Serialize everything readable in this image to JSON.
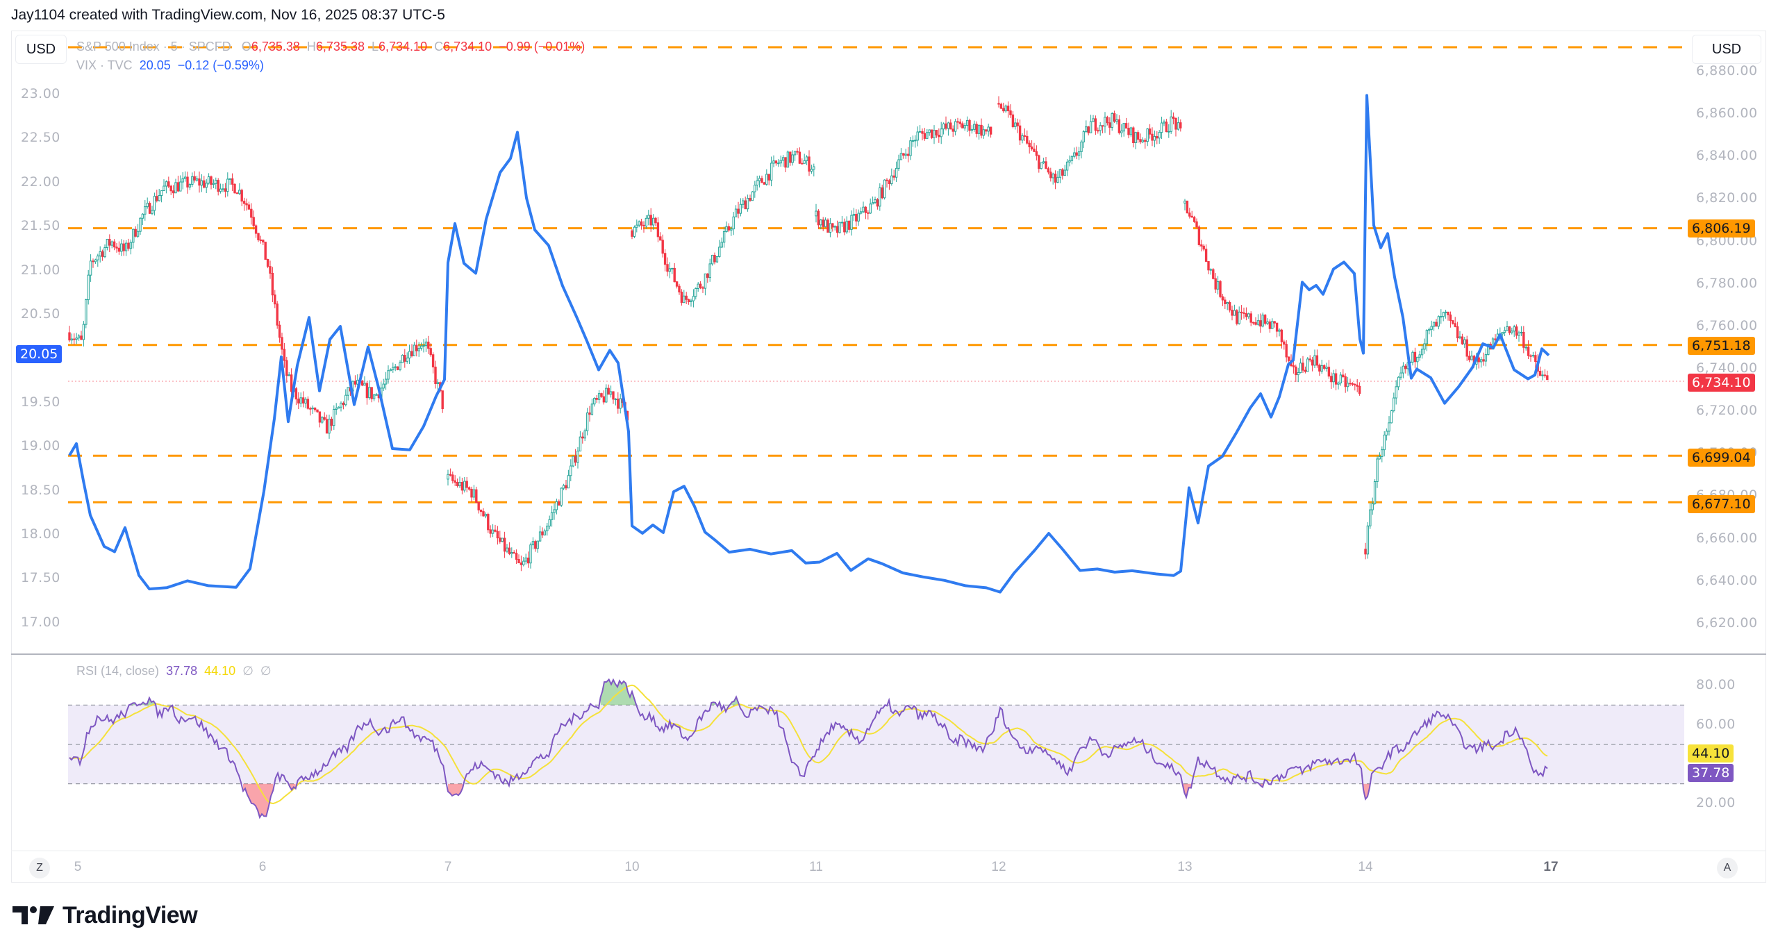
{
  "caption": "Jay1104 created with TradingView.com, Nov 16, 2025 08:37 UTC-5",
  "currency_left": "USD",
  "currency_right": "USD",
  "legend": {
    "main": {
      "symbol": "S&P 500 Index · 5 · SPCFD",
      "o_label": "O",
      "o_value": "6,735.38",
      "h_label": "H",
      "h_value": "6,735.38",
      "l_label": "L",
      "l_value": "6,734.10",
      "c_label": "C",
      "c_value": "6,734.10",
      "change": "−0.99 (−0.01%)"
    },
    "vix": {
      "symbol": "VIX · TVC",
      "value": "20.05",
      "change": "−0.12 (−0.59%)"
    },
    "rsi": {
      "label": "RSI (14, close)",
      "value": "37.78",
      "ma_value": "44.10",
      "extra1": "∅",
      "extra2": "∅"
    }
  },
  "colors": {
    "up": "#26a69a",
    "down": "#f23645",
    "vix_line": "#2f7bf0",
    "level_line": "#ff9800",
    "rsi_line": "#7e57c2",
    "rsi_ma": "#f5e13a",
    "rsi_band": "#efebf9"
  },
  "right_axis": {
    "ticks": [
      "6,880.00",
      "6,860.00",
      "6,840.00",
      "6,820.00",
      "6,800.00",
      "6,780.00",
      "6,760.00",
      "6,740.00",
      "6,720.00",
      "6,700.00",
      "6,680.00",
      "6,660.00",
      "6,640.00",
      "6,620.00"
    ],
    "level_tags": [
      "6,806.19",
      "6,751.18",
      "6,699.04",
      "6,677.10"
    ],
    "last_price_tag": "6,734.10"
  },
  "left_axis": {
    "ticks": [
      "23.00",
      "22.50",
      "22.00",
      "21.50",
      "21.00",
      "20.50",
      "20.00",
      "19.50",
      "19.00",
      "18.50",
      "18.00",
      "17.50",
      "17.00"
    ],
    "last_value_tag": "20.05"
  },
  "rsi_axis": {
    "ticks": [
      "80.00",
      "60.00",
      "20.00"
    ],
    "ma_tag": "44.10",
    "rsi_tag": "37.78"
  },
  "time_axis": {
    "labels": [
      "5",
      "6",
      "7",
      "10",
      "11",
      "12",
      "13",
      "14",
      "17"
    ],
    "z_button": "Z",
    "a_button": "A"
  },
  "brand": "TradingView",
  "chart_data": [
    {
      "type": "candlestick",
      "title": "S&P 500 Index · 5 · SPCFD (right axis)",
      "x": [
        "Nov 5",
        "Nov 6",
        "Nov 7",
        "Nov 10",
        "Nov 11",
        "Nov 12",
        "Nov 13",
        "Nov 14",
        "Nov 17"
      ],
      "ylim": [
        6620,
        6880
      ],
      "ylabel": "USD",
      "approx_close_path": [
        [
          "Nov 5 open",
          6757
        ],
        [
          "Nov 5 mid",
          6797
        ],
        [
          "Nov 5 late",
          6812
        ],
        [
          "Nov 6 open",
          6810
        ],
        [
          "Nov 6 mid",
          6745
        ],
        [
          "Nov 6 close",
          6727
        ],
        [
          "Nov 7 open",
          6682
        ],
        [
          "Nov 7 low",
          6648
        ],
        [
          "Nov 7 close",
          6715
        ],
        [
          "Nov 10 open",
          6805
        ],
        [
          "Nov 10 low",
          6768
        ],
        [
          "Nov 10 close",
          6832
        ],
        [
          "Nov 11 open",
          6813
        ],
        [
          "Nov 11 mid",
          6810
        ],
        [
          "Nov 11 close",
          6850
        ],
        [
          "Nov 12 open",
          6865
        ],
        [
          "Nov 12 low",
          6832
        ],
        [
          "Nov 12 close",
          6850
        ],
        [
          "Nov 13 open",
          6818
        ],
        [
          "Nov 13 mid",
          6765
        ],
        [
          "Nov 13 close",
          6735
        ],
        [
          "Nov 14 open",
          6655
        ],
        [
          "Nov 14 mid",
          6745
        ],
        [
          "Nov 14 high",
          6768
        ],
        [
          "Nov 14 close",
          6734.1
        ]
      ],
      "horizontal_levels": [
        6806.19,
        6751.18,
        6699.04,
        6677.1
      ],
      "last_price": 6734.1
    },
    {
      "type": "line",
      "title": "VIX · TVC (left axis)",
      "ylim": [
        17.0,
        23.0
      ],
      "approx_path": [
        [
          "Nov 5 open",
          18.9
        ],
        [
          "Nov 5 mid",
          17.4
        ],
        [
          "Nov 5 close",
          17.35
        ],
        [
          "Nov 6 open",
          17.5
        ],
        [
          "Nov 6 mid",
          20.0
        ],
        [
          "Nov 6 close",
          18.95
        ],
        [
          "Nov 7 open",
          21.5
        ],
        [
          "Nov 7 high",
          22.55
        ],
        [
          "Nov 7 late",
          20.1
        ],
        [
          "Nov 7 close",
          19.6
        ],
        [
          "Nov 10 open",
          18.0
        ],
        [
          "Nov 10 mid",
          18.5
        ],
        [
          "Nov 10 close",
          17.8
        ],
        [
          "Nov 11",
          17.65
        ],
        [
          "Nov 12",
          17.35
        ],
        [
          "Nov 12 close",
          18.0
        ],
        [
          "Nov 13 open",
          17.5
        ],
        [
          "Nov 13 mid",
          19.0
        ],
        [
          "Nov 13 close",
          21.0
        ],
        [
          "Nov 14 open",
          19.9
        ],
        [
          "Nov 14 spike",
          23.0
        ],
        [
          "Nov 14 mid",
          21.5
        ],
        [
          "Nov 14 late",
          19.8
        ],
        [
          "Nov 14 close",
          20.05
        ]
      ],
      "last_value": 20.05
    },
    {
      "type": "line",
      "title": "RSI (14, close)",
      "ylim": [
        10,
        90
      ],
      "bands": {
        "upper": 70,
        "middle": 50,
        "lower": 30
      },
      "series": [
        {
          "name": "RSI",
          "last": 37.78
        },
        {
          "name": "RSI MA",
          "last": 44.1
        }
      ],
      "approx_rsi_path": [
        [
          "Nov 5",
          45
        ],
        [
          "Nov 5 peak",
          75
        ],
        [
          "Nov 6 trough",
          11
        ],
        [
          "Nov 6 late",
          60
        ],
        [
          "Nov 7 trough",
          29
        ],
        [
          "Nov 7 late",
          55
        ],
        [
          "Nov 10 peak",
          85
        ],
        [
          "Nov 10 mid",
          50
        ],
        [
          "Nov 11",
          45
        ],
        [
          "Nov 12",
          70
        ],
        [
          "Nov 13 trough",
          25
        ],
        [
          "Nov 13 late",
          45
        ],
        [
          "Nov 14 trough",
          20
        ],
        [
          "Nov 14 peak",
          67
        ],
        [
          "Nov 17",
          37.78
        ]
      ]
    }
  ]
}
